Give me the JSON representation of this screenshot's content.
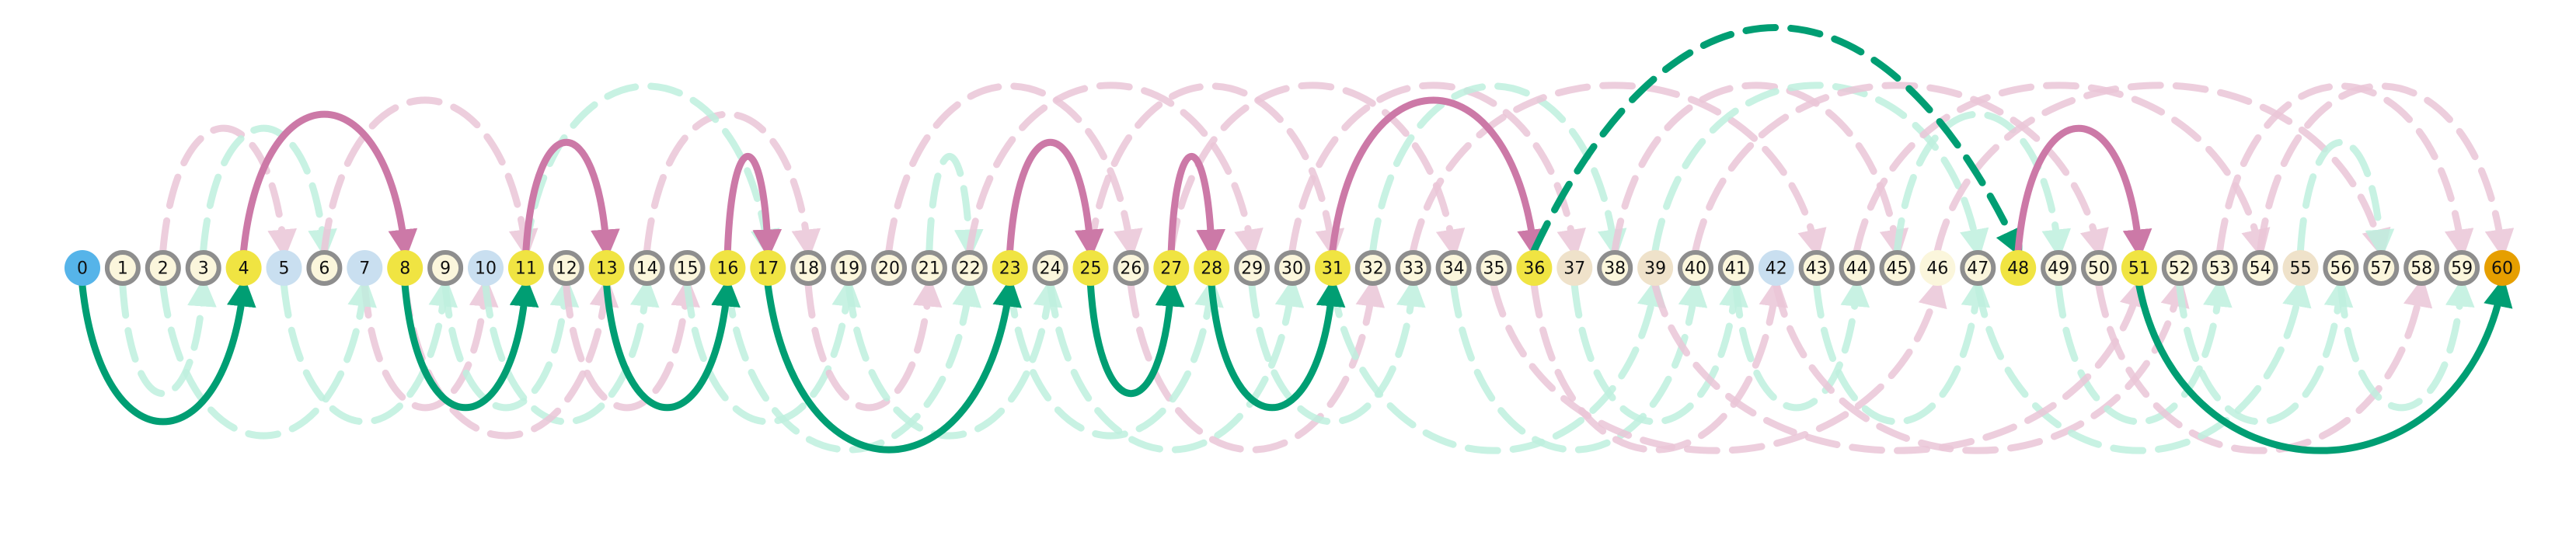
{
  "diagram": {
    "colors": {
      "start_node": "#56B4E9",
      "end_node": "#E69F00",
      "highlight_node": "#F0E442",
      "plain_node_fill": "#FBF6DC",
      "blue_node_fill": "#C9DFF0",
      "tan_node_fill": "#EFE2CA",
      "ring": "#8E8E8E",
      "pink_arc": "#CC79A7",
      "green_arc": "#009E73",
      "faint_pink": "#EBC6D8",
      "faint_green": "#BFF0DF"
    },
    "nodes": [
      {
        "label": "0",
        "style": "start"
      },
      {
        "label": "1",
        "style": "plain"
      },
      {
        "label": "2",
        "style": "plain"
      },
      {
        "label": "3",
        "style": "plain"
      },
      {
        "label": "4",
        "style": "highlight"
      },
      {
        "label": "5",
        "style": "blue"
      },
      {
        "label": "6",
        "style": "plain"
      },
      {
        "label": "7",
        "style": "blue-plain"
      },
      {
        "label": "8",
        "style": "highlight"
      },
      {
        "label": "9",
        "style": "plain"
      },
      {
        "label": "10",
        "style": "blue-plain"
      },
      {
        "label": "11",
        "style": "highlight"
      },
      {
        "label": "12",
        "style": "plain"
      },
      {
        "label": "13",
        "style": "highlight"
      },
      {
        "label": "14",
        "style": "plain"
      },
      {
        "label": "15",
        "style": "plain"
      },
      {
        "label": "16",
        "style": "highlight"
      },
      {
        "label": "17",
        "style": "highlight"
      },
      {
        "label": "18",
        "style": "plain"
      },
      {
        "label": "19",
        "style": "plain"
      },
      {
        "label": "20",
        "style": "plain"
      },
      {
        "label": "21",
        "style": "plain"
      },
      {
        "label": "22",
        "style": "plain"
      },
      {
        "label": "23",
        "style": "highlight"
      },
      {
        "label": "24",
        "style": "plain"
      },
      {
        "label": "25",
        "style": "highlight"
      },
      {
        "label": "26",
        "style": "plain"
      },
      {
        "label": "27",
        "style": "highlight"
      },
      {
        "label": "28",
        "style": "highlight"
      },
      {
        "label": "29",
        "style": "plain"
      },
      {
        "label": "30",
        "style": "plain"
      },
      {
        "label": "31",
        "style": "highlight"
      },
      {
        "label": "32",
        "style": "plain"
      },
      {
        "label": "33",
        "style": "plain"
      },
      {
        "label": "34",
        "style": "plain"
      },
      {
        "label": "35",
        "style": "plain"
      },
      {
        "label": "36",
        "style": "highlight"
      },
      {
        "label": "37",
        "style": "tan-plain"
      },
      {
        "label": "38",
        "style": "plain"
      },
      {
        "label": "39",
        "style": "tan-plain"
      },
      {
        "label": "40",
        "style": "plain"
      },
      {
        "label": "41",
        "style": "plain"
      },
      {
        "label": "42",
        "style": "blue-plain"
      },
      {
        "label": "43",
        "style": "plain"
      },
      {
        "label": "44",
        "style": "plain"
      },
      {
        "label": "45",
        "style": "plain"
      },
      {
        "label": "46",
        "style": "cream-plain"
      },
      {
        "label": "47",
        "style": "plain"
      },
      {
        "label": "48",
        "style": "highlight"
      },
      {
        "label": "49",
        "style": "plain"
      },
      {
        "label": "50",
        "style": "plain"
      },
      {
        "label": "51",
        "style": "highlight"
      },
      {
        "label": "52",
        "style": "plain"
      },
      {
        "label": "53",
        "style": "plain"
      },
      {
        "label": "54",
        "style": "plain"
      },
      {
        "label": "55",
        "style": "tan-plain"
      },
      {
        "label": "56",
        "style": "plain"
      },
      {
        "label": "57",
        "style": "plain"
      },
      {
        "label": "58",
        "style": "plain"
      },
      {
        "label": "59",
        "style": "plain"
      },
      {
        "label": "60",
        "style": "end"
      }
    ],
    "path_edges": [
      {
        "from": 0,
        "to": 4,
        "color": "green",
        "dashed": false
      },
      {
        "from": 4,
        "to": 8,
        "color": "pink",
        "dashed": false
      },
      {
        "from": 8,
        "to": 11,
        "color": "green",
        "dashed": false
      },
      {
        "from": 11,
        "to": 13,
        "color": "pink",
        "dashed": false
      },
      {
        "from": 13,
        "to": 16,
        "color": "green",
        "dashed": false
      },
      {
        "from": 16,
        "to": 17,
        "color": "pink",
        "dashed": false
      },
      {
        "from": 17,
        "to": 23,
        "color": "green",
        "dashed": false
      },
      {
        "from": 23,
        "to": 25,
        "color": "pink",
        "dashed": false
      },
      {
        "from": 25,
        "to": 27,
        "color": "green",
        "dashed": false
      },
      {
        "from": 27,
        "to": 28,
        "color": "pink",
        "dashed": false
      },
      {
        "from": 28,
        "to": 31,
        "color": "green",
        "dashed": false
      },
      {
        "from": 31,
        "to": 36,
        "color": "pink",
        "dashed": false
      },
      {
        "from": 36,
        "to": 48,
        "color": "green",
        "dashed": true
      },
      {
        "from": 48,
        "to": 51,
        "color": "pink",
        "dashed": false
      },
      {
        "from": 51,
        "to": 60,
        "color": "green",
        "dashed": false
      }
    ],
    "background_edges": [
      {
        "from": 1,
        "to": 3,
        "color": "green"
      },
      {
        "from": 2,
        "to": 5,
        "color": "pink"
      },
      {
        "from": 3,
        "to": 6,
        "color": "green"
      },
      {
        "from": 5,
        "to": 9,
        "color": "green"
      },
      {
        "from": 6,
        "to": 11,
        "color": "pink"
      },
      {
        "from": 7,
        "to": 10,
        "color": "pink"
      },
      {
        "from": 9,
        "to": 12,
        "color": "green"
      },
      {
        "from": 10,
        "to": 14,
        "color": "green"
      },
      {
        "from": 12,
        "to": 15,
        "color": "pink"
      },
      {
        "from": 14,
        "to": 18,
        "color": "pink"
      },
      {
        "from": 15,
        "to": 19,
        "color": "green"
      },
      {
        "from": 18,
        "to": 21,
        "color": "pink"
      },
      {
        "from": 19,
        "to": 24,
        "color": "green"
      },
      {
        "from": 20,
        "to": 26,
        "color": "pink"
      },
      {
        "from": 21,
        "to": 22,
        "color": "green"
      },
      {
        "from": 22,
        "to": 29,
        "color": "pink"
      },
      {
        "from": 24,
        "to": 30,
        "color": "green"
      },
      {
        "from": 26,
        "to": 32,
        "color": "pink"
      },
      {
        "from": 29,
        "to": 33,
        "color": "green"
      },
      {
        "from": 30,
        "to": 37,
        "color": "pink"
      },
      {
        "from": 32,
        "to": 38,
        "color": "green"
      },
      {
        "from": 33,
        "to": 43,
        "color": "pink"
      },
      {
        "from": 34,
        "to": 40,
        "color": "green"
      },
      {
        "from": 35,
        "to": 46,
        "color": "pink"
      },
      {
        "from": 37,
        "to": 41,
        "color": "green"
      },
      {
        "from": 38,
        "to": 45,
        "color": "pink"
      },
      {
        "from": 39,
        "to": 47,
        "color": "green"
      },
      {
        "from": 40,
        "to": 50,
        "color": "pink"
      },
      {
        "from": 41,
        "to": 44,
        "color": "green"
      },
      {
        "from": 42,
        "to": 52,
        "color": "pink"
      },
      {
        "from": 43,
        "to": 47,
        "color": "green"
      },
      {
        "from": 44,
        "to": 54,
        "color": "pink"
      },
      {
        "from": 45,
        "to": 49,
        "color": "green"
      },
      {
        "from": 46,
        "to": 57,
        "color": "pink"
      },
      {
        "from": 49,
        "to": 53,
        "color": "green"
      },
      {
        "from": 50,
        "to": 58,
        "color": "pink"
      },
      {
        "from": 52,
        "to": 56,
        "color": "green"
      },
      {
        "from": 53,
        "to": 59,
        "color": "pink"
      },
      {
        "from": 55,
        "to": 57,
        "color": "green"
      },
      {
        "from": 56,
        "to": 59,
        "color": "green"
      },
      {
        "from": 2,
        "to": 7,
        "color": "green"
      },
      {
        "from": 8,
        "to": 13,
        "color": "pink"
      },
      {
        "from": 16,
        "to": 22,
        "color": "green"
      },
      {
        "from": 25,
        "to": 31,
        "color": "pink"
      },
      {
        "from": 36,
        "to": 42,
        "color": "pink"
      },
      {
        "from": 47,
        "to": 55,
        "color": "green"
      },
      {
        "from": 54,
        "to": 60,
        "color": "pink"
      },
      {
        "from": 11,
        "to": 17,
        "color": "green"
      },
      {
        "from": 23,
        "to": 28,
        "color": "green"
      },
      {
        "from": 31,
        "to": 39,
        "color": "green"
      },
      {
        "from": 39,
        "to": 51,
        "color": "pink"
      },
      {
        "from": 27,
        "to": 34,
        "color": "pink"
      }
    ]
  }
}
